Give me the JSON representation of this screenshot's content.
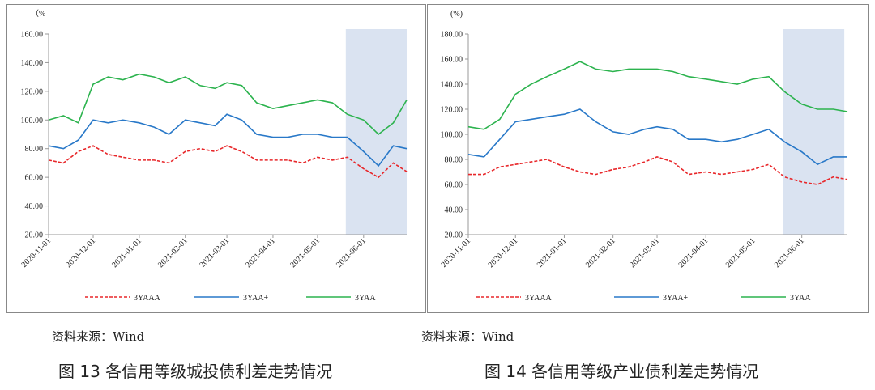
{
  "chart_data": [
    {
      "type": "line",
      "y_unit_label": "（%",
      "xlim": [
        "2020-11-01",
        "2021-06-30"
      ],
      "xticks": [
        "2020-11-01",
        "2020-12-01",
        "2021-01-01",
        "2021-02-01",
        "2021-03-01",
        "2021-04-01",
        "2021-05-01",
        "2021-06-01"
      ],
      "ylim": [
        20,
        160
      ],
      "yticks": [
        {
          "value": 20,
          "label": "20.00"
        },
        {
          "value": 40,
          "label": "40.00"
        },
        {
          "value": 60,
          "label": "60.00"
        },
        {
          "value": 80,
          "label": "80.00"
        },
        {
          "value": 100,
          "label": "100.00"
        },
        {
          "value": 120,
          "label": "120.00"
        },
        {
          "value": 140,
          "label": "140.00"
        },
        {
          "value": 160,
          "label": "160.00"
        }
      ],
      "highlight": [
        "2021-05-20",
        "2021-06-30"
      ],
      "highlight_color": "#dae3f1",
      "x": [
        "2020-11-01",
        "2020-11-11",
        "2020-11-21",
        "2020-12-01",
        "2020-12-11",
        "2020-12-21",
        "2021-01-01",
        "2021-01-11",
        "2021-01-21",
        "2021-02-01",
        "2021-02-11",
        "2021-02-21",
        "2021-03-01",
        "2021-03-11",
        "2021-03-21",
        "2021-04-01",
        "2021-04-11",
        "2021-04-21",
        "2021-05-01",
        "2021-05-11",
        "2021-05-21",
        "2021-06-01",
        "2021-06-11",
        "2021-06-21",
        "2021-06-30"
      ],
      "series": [
        {
          "name": "3YAAA",
          "color": "#e8272a",
          "dashed": true,
          "values": [
            72,
            70,
            78,
            82,
            76,
            74,
            72,
            72,
            70,
            78,
            80,
            78,
            82,
            78,
            72,
            72,
            72,
            70,
            74,
            72,
            74,
            66,
            60,
            70,
            64
          ]
        },
        {
          "name": "3YAA+",
          "color": "#2878c8",
          "dashed": false,
          "values": [
            82,
            80,
            86,
            100,
            98,
            100,
            98,
            95,
            90,
            100,
            98,
            96,
            104,
            100,
            90,
            88,
            88,
            90,
            90,
            88,
            88,
            78,
            68,
            82,
            80
          ]
        },
        {
          "name": "3YAA",
          "color": "#2cb34e",
          "dashed": false,
          "values": [
            100,
            103,
            98,
            125,
            130,
            128,
            132,
            130,
            126,
            130,
            124,
            122,
            126,
            124,
            112,
            108,
            110,
            112,
            114,
            112,
            104,
            100,
            90,
            98,
            114
          ]
        }
      ],
      "source": "资料来源：Wind",
      "caption": "图 13    各信用等级城投债利差走势情况"
    },
    {
      "type": "line",
      "y_unit_label": "(%)",
      "xlim": [
        "2020-11-01",
        "2021-06-30"
      ],
      "xticks": [
        "2020-11-01",
        "2020-12-01",
        "2021-01-01",
        "2021-02-01",
        "2021-03-01",
        "2021-04-01",
        "2021-05-01",
        "2021-06-01"
      ],
      "ylim": [
        20,
        180
      ],
      "yticks": [
        {
          "value": 20,
          "label": "20.00"
        },
        {
          "value": 40,
          "label": "40.00"
        },
        {
          "value": 60,
          "label": "60.00"
        },
        {
          "value": 80,
          "label": "80.00"
        },
        {
          "value": 100,
          "label": "100.00"
        },
        {
          "value": 120,
          "label": "120.00"
        },
        {
          "value": 140,
          "label": "140.00"
        },
        {
          "value": 160,
          "label": "160.00"
        },
        {
          "value": 180,
          "label": "180.00"
        }
      ],
      "highlight": [
        "2021-05-20",
        "2021-06-28"
      ],
      "highlight_color": "#dae3f1",
      "x": [
        "2020-11-01",
        "2020-11-11",
        "2020-11-21",
        "2020-12-01",
        "2020-12-11",
        "2020-12-21",
        "2021-01-01",
        "2021-01-11",
        "2021-01-21",
        "2021-02-01",
        "2021-02-11",
        "2021-02-21",
        "2021-03-01",
        "2021-03-11",
        "2021-03-21",
        "2021-04-01",
        "2021-04-11",
        "2021-04-21",
        "2021-05-01",
        "2021-05-11",
        "2021-05-21",
        "2021-06-01",
        "2021-06-11",
        "2021-06-21",
        "2021-06-30"
      ],
      "series": [
        {
          "name": "3YAAA",
          "color": "#e8272a",
          "dashed": true,
          "values": [
            68,
            68,
            74,
            76,
            78,
            80,
            74,
            70,
            68,
            72,
            74,
            78,
            82,
            78,
            68,
            70,
            68,
            70,
            72,
            76,
            66,
            62,
            60,
            66,
            64
          ]
        },
        {
          "name": "3YAA+",
          "color": "#2878c8",
          "dashed": false,
          "values": [
            84,
            82,
            96,
            110,
            112,
            114,
            116,
            120,
            110,
            102,
            100,
            104,
            106,
            104,
            96,
            96,
            94,
            96,
            100,
            104,
            94,
            86,
            76,
            82,
            82
          ]
        },
        {
          "name": "3YAA",
          "color": "#2cb34e",
          "dashed": false,
          "values": [
            106,
            104,
            112,
            132,
            140,
            146,
            152,
            158,
            152,
            150,
            152,
            152,
            152,
            150,
            146,
            144,
            142,
            140,
            144,
            146,
            134,
            124,
            120,
            120,
            118
          ]
        }
      ],
      "source": "资料来源：Wind",
      "caption": "图 14    各信用等级产业债利差走势情况"
    }
  ]
}
